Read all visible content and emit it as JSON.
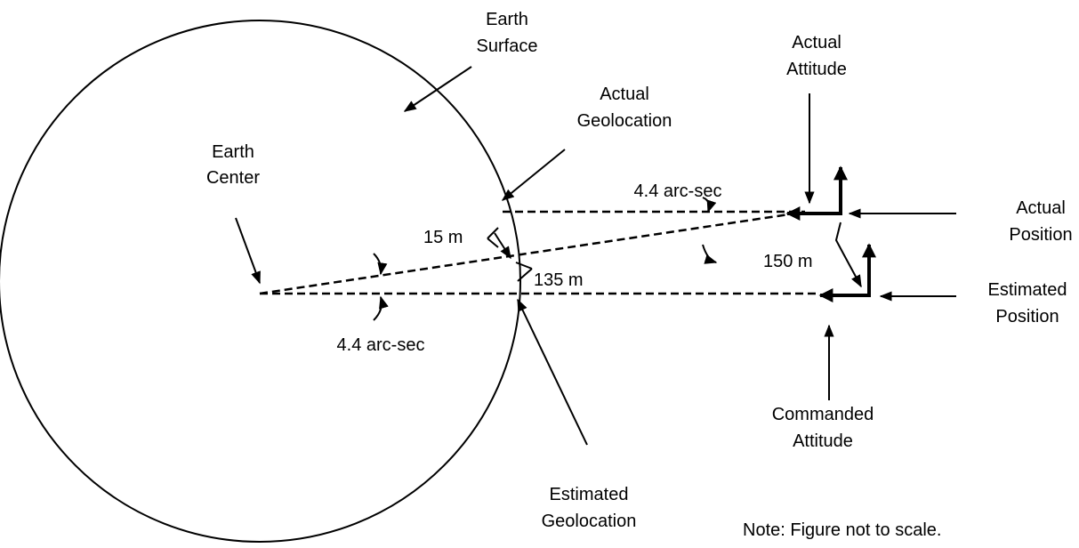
{
  "labels": {
    "earth_surface": [
      "Earth",
      "Surface"
    ],
    "actual_geolocation": [
      "Actual",
      "Geolocation"
    ],
    "actual_attitude": [
      "Actual",
      "Attitude"
    ],
    "earth_center": [
      "Earth",
      "Center"
    ],
    "angle_top": "4.4 arc-sec",
    "actual_position": [
      "Actual",
      "Position"
    ],
    "distance_15": "15 m",
    "distance_135": "135 m",
    "distance_150": "150 m",
    "estimated_position": [
      "Estimated",
      "Position"
    ],
    "angle_bottom": "4.4 arc-sec",
    "commanded_attitude": [
      "Commanded",
      "Attitude"
    ],
    "estimated_geolocation": [
      "Estimated",
      "Geolocation"
    ],
    "note": "Note: Figure not to scale."
  }
}
